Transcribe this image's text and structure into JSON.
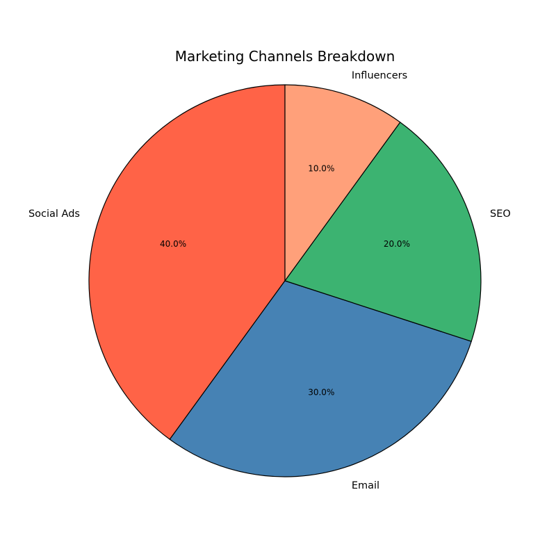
{
  "chart_data": {
    "type": "pie",
    "title": "Marketing Channels Breakdown",
    "categories": [
      "Social Ads",
      "Email",
      "SEO",
      "Influencers"
    ],
    "values": [
      40,
      30,
      20,
      10
    ],
    "percent_labels": [
      "40.0%",
      "30.0%",
      "20.0%",
      "10.0%"
    ],
    "colors": [
      "#ff6347",
      "#4682b4",
      "#3cb371",
      "#ffa07a"
    ],
    "start_angle_deg": 90,
    "direction": "counterclockwise",
    "legend": "none"
  }
}
